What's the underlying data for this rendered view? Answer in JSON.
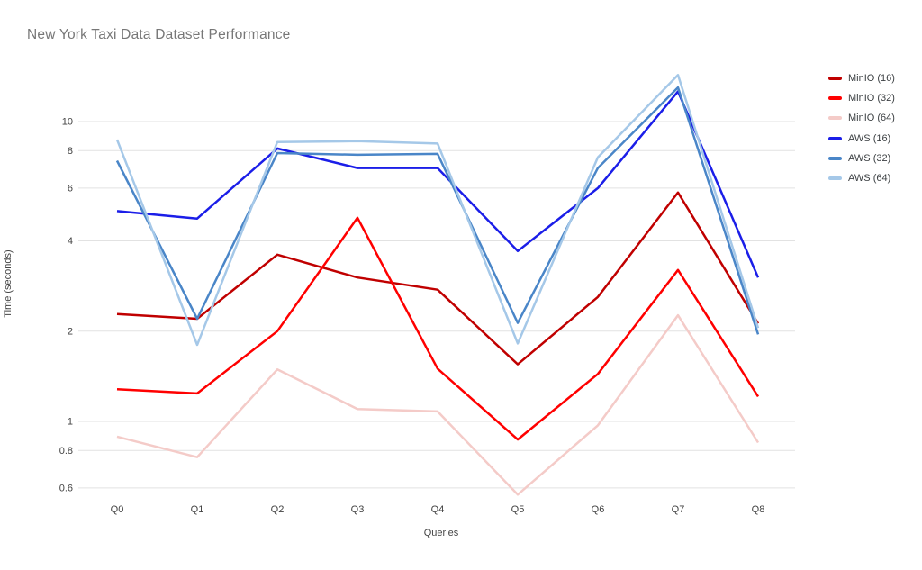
{
  "title": "New York Taxi Data Dataset Performance",
  "chart_data": {
    "type": "line",
    "title": "New York Taxi Data Dataset Performance",
    "xlabel": "Queries",
    "ylabel": "Time (seconds)",
    "x_categories": [
      "Q0",
      "Q1",
      "Q2",
      "Q3",
      "Q4",
      "Q5",
      "Q6",
      "Q7",
      "Q8"
    ],
    "yscale": "log",
    "yticks": [
      "10",
      "8",
      "6",
      "4",
      "2",
      "1",
      "0.8",
      "0.6"
    ],
    "ylim": [
      0.55,
      15.2
    ],
    "grid": true,
    "legend_position": "right",
    "background_color": "#ffffff",
    "gridline_color": "#e2e2e2",
    "series": [
      {
        "name": "MinIO (16)",
        "color": "#c00000",
        "values": [
          2.28,
          2.2,
          3.6,
          3.02,
          2.75,
          1.55,
          2.6,
          5.8,
          2.12
        ]
      },
      {
        "name": "MinIO (32)",
        "color": "#ff0000",
        "values": [
          1.28,
          1.24,
          2.0,
          4.78,
          1.5,
          0.87,
          1.44,
          3.2,
          1.21
        ]
      },
      {
        "name": "MinIO (64)",
        "color": "#f4cbc8",
        "values": [
          0.89,
          0.76,
          1.49,
          1.1,
          1.08,
          0.57,
          0.97,
          2.26,
          0.85
        ]
      },
      {
        "name": "AWS (16)",
        "color": "#1b1ee8",
        "values": [
          5.03,
          4.75,
          8.13,
          7.0,
          7.0,
          3.7,
          6.0,
          12.6,
          3.02
        ]
      },
      {
        "name": "AWS (32)",
        "color": "#4a86c8",
        "values": [
          7.4,
          2.2,
          7.85,
          7.75,
          7.8,
          2.13,
          7.0,
          13.0,
          1.95
        ]
      },
      {
        "name": "AWS (64)",
        "color": "#a5c8e8",
        "values": [
          8.7,
          1.8,
          8.55,
          8.6,
          8.45,
          1.82,
          7.6,
          14.3,
          2.05
        ]
      }
    ]
  }
}
